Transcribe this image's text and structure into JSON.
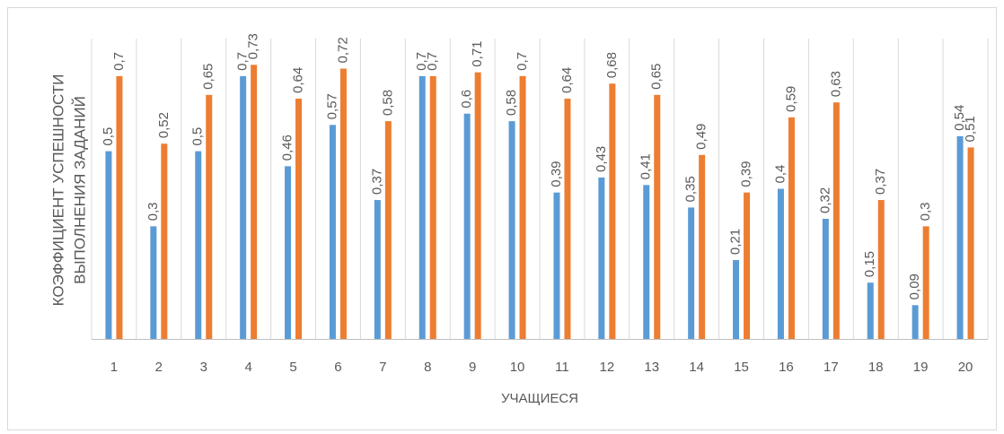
{
  "chart_data": {
    "type": "bar",
    "y_label": [
      "КОЭФФИЦИЕНТ УСПЕШНОСТИ",
      "ВЫПОЛНЕНИЯ ЗАДАНИЙ"
    ],
    "x_label": "УЧАЩИЕСЯ",
    "categories": [
      "1",
      "2",
      "3",
      "4",
      "5",
      "6",
      "7",
      "8",
      "9",
      "10",
      "11",
      "12",
      "13",
      "14",
      "15",
      "16",
      "17",
      "18",
      "19",
      "20"
    ],
    "series": [
      {
        "color": "#5b9bd5",
        "values": [
          0.5,
          0.3,
          0.5,
          0.7,
          0.46,
          0.57,
          0.37,
          0.7,
          0.6,
          0.58,
          0.39,
          0.43,
          0.41,
          0.35,
          0.21,
          0.4,
          0.32,
          0.15,
          0.09,
          0.54
        ],
        "value_labels": [
          "0,5",
          "0,3",
          "0,5",
          "0,7",
          "0,46",
          "0,57",
          "0,37",
          "0,7",
          "0,6",
          "0,58",
          "0,39",
          "0,43",
          "0,41",
          "0,35",
          "0,21",
          "0,4",
          "0,32",
          "0,15",
          "0,09",
          "0,54"
        ]
      },
      {
        "color": "#ed7d31",
        "values": [
          0.7,
          0.52,
          0.65,
          0.73,
          0.64,
          0.72,
          0.58,
          0.7,
          0.71,
          0.7,
          0.64,
          0.68,
          0.65,
          0.49,
          0.39,
          0.59,
          0.63,
          0.37,
          0.3,
          0.51
        ],
        "value_labels": [
          "0,7",
          "0,52",
          "0,65",
          "0,73",
          "0,64",
          "0,72",
          "0,58",
          "0,7",
          "0,71",
          "0,7",
          "0,64",
          "0,68",
          "0,65",
          "0,49",
          "0,39",
          "0,59",
          "0,63",
          "0,37",
          "0,3",
          "0,51"
        ]
      }
    ],
    "ylim": [
      0,
      0.8
    ]
  }
}
